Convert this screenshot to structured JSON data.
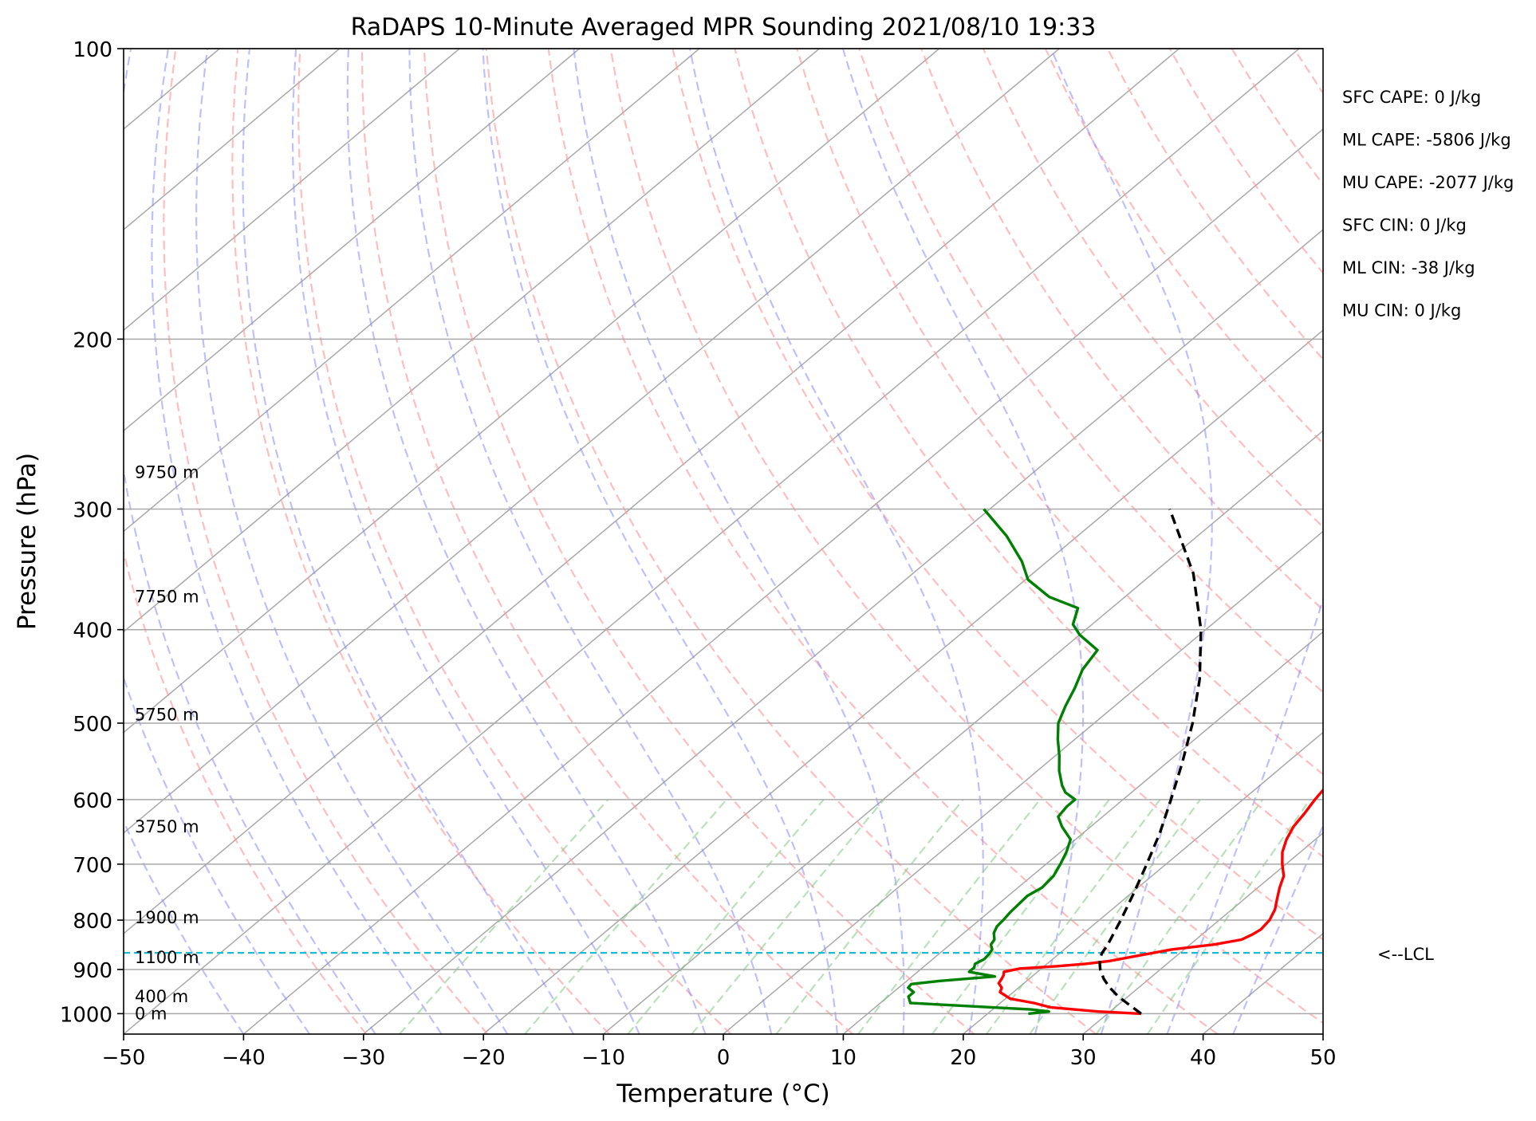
{
  "chart_data": {
    "type": "line",
    "title": "RaDAPS 10-Minute Averaged MPR Sounding 2021/08/10 19:33",
    "xlabel": "Temperature (°C)",
    "ylabel": "Pressure (hPa)",
    "xlim": [
      -50,
      50
    ],
    "ylim": [
      1050,
      100
    ],
    "y_scale": "log",
    "grid": true,
    "x_ticks": [
      "−50",
      "−40",
      "−30",
      "−20",
      "−10",
      "0",
      "10",
      "20",
      "30",
      "40",
      "50"
    ],
    "y_ticks": [
      "100",
      "200",
      "300",
      "400",
      "500",
      "600",
      "700",
      "800",
      "900",
      "1000"
    ],
    "stats": [
      "SFC CAPE: 0 J/kg",
      "ML CAPE: -5806 J/kg",
      "MU CAPE: -2077 J/kg",
      "SFC CIN: 0 J/kg",
      "ML CIN: -38 J/kg",
      "MU CIN: 0 J/kg"
    ],
    "lcl_label": "<--LCL",
    "lcl_pressure": 865,
    "height_labels": [
      {
        "text": "9750 m",
        "p": 275
      },
      {
        "text": "7750 m",
        "p": 370
      },
      {
        "text": "5750 m",
        "p": 490
      },
      {
        "text": "3750 m",
        "p": 640
      },
      {
        "text": "1900 m",
        "p": 795
      },
      {
        "text": "1100 m",
        "p": 875
      },
      {
        "text": "400 m",
        "p": 960
      },
      {
        "text": "0 m",
        "p": 1000
      }
    ],
    "series": [
      {
        "color": "#ff0000",
        "p": [
          1000,
          995,
          985,
          975,
          965,
          950,
          940,
          930,
          920,
          912,
          905,
          898,
          893,
          888,
          882,
          870,
          858,
          848,
          838,
          828,
          818,
          800,
          780,
          760,
          740,
          720,
          700,
          680,
          660,
          640,
          620,
          600,
          580,
          560,
          540,
          520,
          500,
          480,
          460,
          440,
          420,
          400,
          380,
          360,
          340,
          320,
          300
        ],
        "t": [
          32.8,
          29,
          24.6,
          22.8,
          20.4,
          18.9,
          18.6,
          17.9,
          17.7,
          17.5,
          17.2,
          18.2,
          21.0,
          23.2,
          24.9,
          26.9,
          29.0,
          32.0,
          33.8,
          34.2,
          34.4,
          34.2,
          33.6,
          32.7,
          31.8,
          31.0,
          29.7,
          28.5,
          27.6,
          26.9,
          26.5,
          26.0,
          25.6,
          25.0,
          24.2,
          23.6,
          22.4,
          20.8,
          19.6,
          18.0,
          16.6,
          14.9,
          13.8,
          12.8,
          11.6,
          10.6,
          9.2
        ]
      },
      {
        "color": "#008000",
        "p": [
          1000,
          995,
          990,
          975,
          960,
          950,
          940,
          932,
          925,
          915,
          905,
          896,
          888,
          878,
          868,
          858,
          848,
          838,
          825,
          812,
          800,
          785,
          770,
          755,
          740,
          720,
          700,
          680,
          660,
          640,
          625,
          610,
          600,
          590,
          580,
          560,
          540,
          520,
          500,
          480,
          460,
          440,
          420,
          405,
          395,
          380,
          370,
          355,
          340,
          320,
          300
        ],
        "t": [
          23.4,
          24.9,
          23.2,
          12.5,
          11.7,
          11.7,
          10.8,
          10.7,
          12.7,
          16.9,
          14.3,
          14.3,
          14.0,
          14.3,
          14.2,
          14.0,
          13.4,
          13.2,
          12.5,
          12.1,
          12.0,
          11.8,
          11.7,
          11.6,
          12.0,
          11.8,
          11.2,
          10.5,
          9.6,
          7.6,
          6.3,
          6.0,
          6.0,
          4.5,
          3.5,
          1.8,
          0.3,
          -1.4,
          -3.0,
          -4.1,
          -5.1,
          -6.3,
          -7.0,
          -10.0,
          -11.6,
          -12.8,
          -16.3,
          -19.8,
          -22.1,
          -25.9,
          -30.5
        ]
      },
      {
        "color": "#000000",
        "dashed": true,
        "p": [
          1000,
          980,
          960,
          940,
          920,
          900,
          880,
          865,
          850,
          800,
          750,
          700,
          650,
          600,
          550,
          500,
          450,
          400,
          350,
          300
        ],
        "t": [
          32.8,
          31.0,
          29.2,
          27.6,
          26.2,
          25.0,
          24.0,
          23.5,
          23.2,
          21.8,
          20.2,
          18.4,
          16.4,
          14.0,
          11.3,
          8.2,
          4.4,
          -0.4,
          -6.6,
          -15.0
        ]
      }
    ]
  }
}
